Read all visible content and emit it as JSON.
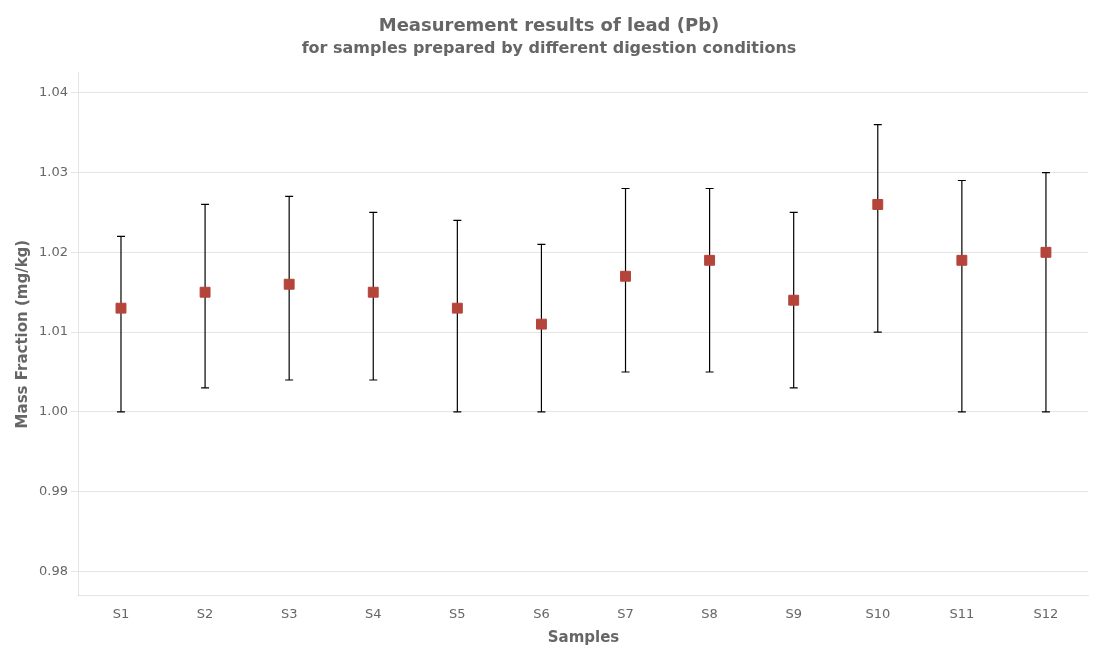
{
  "chart_data": {
    "type": "scatter",
    "title": "Measurement results of lead (Pb)",
    "subtitle": "for samples prepared by different digestion conditions",
    "x_label": "Samples",
    "y_label": "Mass Fraction (mg/kg)",
    "categories": [
      "S1",
      "S2",
      "S3",
      "S4",
      "S5",
      "S6",
      "S7",
      "S8",
      "S9",
      "S10",
      "S11",
      "S12"
    ],
    "values": [
      1.013,
      1.015,
      1.016,
      1.015,
      1.013,
      1.011,
      1.017,
      1.019,
      1.014,
      1.026,
      1.019,
      1.02
    ],
    "yerr_low": [
      0.013,
      0.012,
      0.012,
      0.011,
      0.013,
      0.011,
      0.012,
      0.014,
      0.011,
      0.016,
      0.019,
      0.02
    ],
    "yerr_high": [
      0.009,
      0.011,
      0.011,
      0.01,
      0.011,
      0.01,
      0.011,
      0.009,
      0.011,
      0.01,
      0.01,
      0.01
    ],
    "color": "#b5443a",
    "marker": "square",
    "ylim": [
      0.977,
      1.0425
    ],
    "yticks": [
      0.98,
      0.99,
      {
        "value": 1,
        "label": "1.00"
      },
      1.01,
      1.02,
      1.03,
      1.04
    ],
    "grid": true
  }
}
